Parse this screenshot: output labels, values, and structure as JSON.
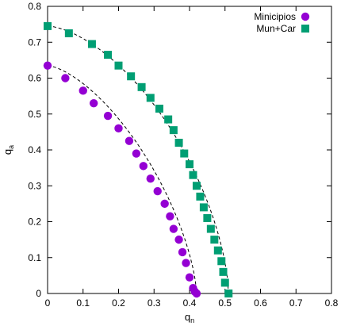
{
  "chart_data": {
    "type": "scatter",
    "xlabel": "q",
    "xlabel_sub": "n",
    "ylabel": "q",
    "ylabel_sub": "a",
    "xlim": [
      0,
      0.8
    ],
    "ylim": [
      0,
      0.8
    ],
    "xticks": [
      "0",
      "0.1",
      "0.2",
      "0.3",
      "0.4",
      "0.5",
      "0.6",
      "0.7",
      "0.8"
    ],
    "yticks": [
      "0",
      "0.1",
      "0.2",
      "0.3",
      "0.4",
      "0.5",
      "0.6",
      "0.7",
      "0.8"
    ],
    "legend_position": "top-right",
    "grid": false,
    "series": [
      {
        "name": "Minicipios",
        "marker": "circle",
        "color": "#9400d3",
        "x": [
          0.0,
          0.05,
          0.1,
          0.13,
          0.17,
          0.2,
          0.23,
          0.25,
          0.27,
          0.29,
          0.31,
          0.33,
          0.345,
          0.355,
          0.37,
          0.38,
          0.39,
          0.4,
          0.41,
          0.415,
          0.42
        ],
        "y": [
          0.635,
          0.6,
          0.565,
          0.53,
          0.495,
          0.46,
          0.425,
          0.39,
          0.355,
          0.32,
          0.285,
          0.25,
          0.215,
          0.18,
          0.15,
          0.115,
          0.085,
          0.045,
          0.015,
          0.005,
          0.0
        ]
      },
      {
        "name": "Mun+Car",
        "marker": "square",
        "color": "#009e73",
        "x": [
          0.0,
          0.06,
          0.125,
          0.17,
          0.2,
          0.235,
          0.265,
          0.29,
          0.315,
          0.34,
          0.355,
          0.37,
          0.385,
          0.4,
          0.41,
          0.42,
          0.43,
          0.44,
          0.45,
          0.46,
          0.47,
          0.48,
          0.49,
          0.495,
          0.5,
          0.51
        ],
        "y": [
          0.745,
          0.725,
          0.695,
          0.665,
          0.635,
          0.605,
          0.575,
          0.545,
          0.515,
          0.485,
          0.455,
          0.42,
          0.39,
          0.36,
          0.33,
          0.3,
          0.27,
          0.24,
          0.21,
          0.18,
          0.15,
          0.12,
          0.09,
          0.06,
          0.03,
          0.0
        ]
      }
    ],
    "fit_curves": [
      {
        "a": 0.42,
        "b": 0.635,
        "exponent": 1.5
      },
      {
        "a": 0.51,
        "b": 0.745,
        "exponent": 1.6
      }
    ]
  }
}
